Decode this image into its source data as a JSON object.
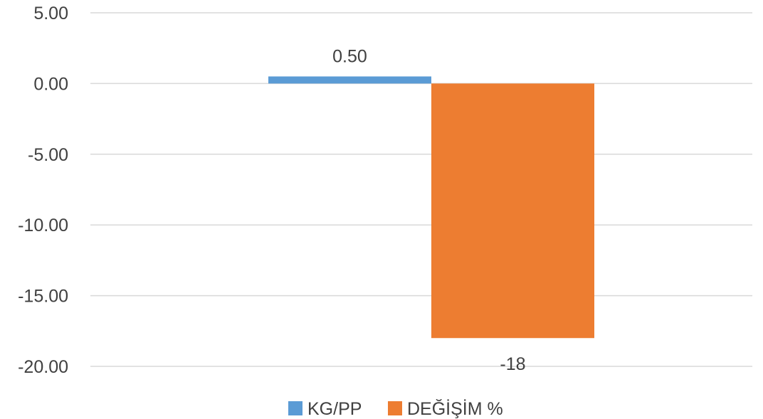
{
  "chart_data": {
    "type": "bar",
    "title": "",
    "xlabel": "",
    "ylabel": "",
    "ylim": [
      -20,
      5
    ],
    "yticks": [
      5,
      0,
      -5,
      -10,
      -15,
      -20
    ],
    "ytick_labels": [
      "5.00",
      "0.00",
      "-5.00",
      "-10.00",
      "-15.00",
      "-20.00"
    ],
    "grid": true,
    "legend_position": "bottom",
    "series": [
      {
        "name": "KG/PP",
        "value": 0.5,
        "label": "0.50",
        "color": "#5b9bd5"
      },
      {
        "name": "DEĞİŞİM %",
        "value": -18,
        "label": "-18",
        "color": "#ed7d31"
      }
    ]
  }
}
